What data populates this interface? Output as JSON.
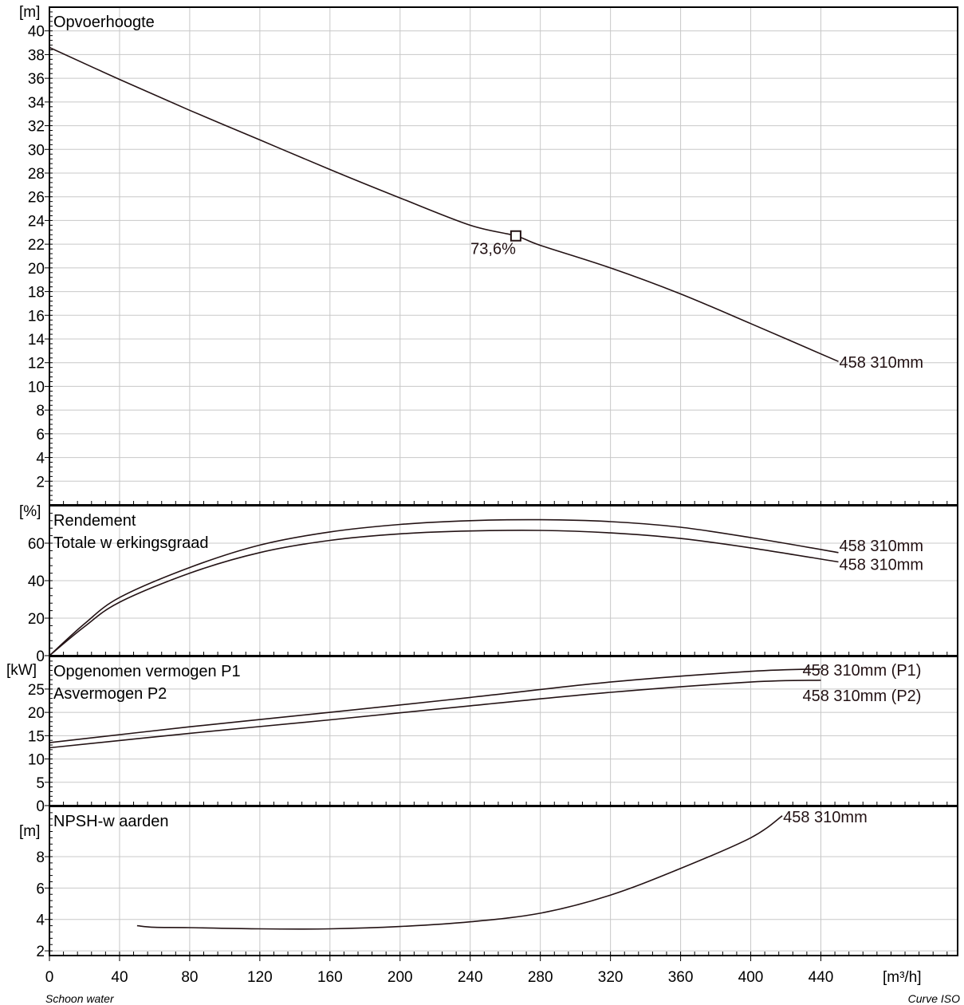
{
  "footer": {
    "left": "Schoon water",
    "right": "Curve ISO"
  },
  "x_axis": {
    "unit": "[m³/h]",
    "ticks": [
      0,
      40,
      80,
      120,
      160,
      200,
      240,
      280,
      320,
      360,
      400,
      440
    ],
    "range": [
      0,
      518
    ]
  },
  "colors": {
    "curve": "#231214",
    "grid": "#c8c8c8",
    "frame": "#000000"
  },
  "chart_data": [
    {
      "type": "line",
      "title": "Opvoerhoogte",
      "ylabel": "[m]",
      "ylim": [
        0,
        42
      ],
      "yticks": [
        2,
        4,
        6,
        8,
        10,
        12,
        14,
        16,
        18,
        20,
        22,
        24,
        26,
        28,
        30,
        32,
        34,
        36,
        38,
        40
      ],
      "series": [
        {
          "name": "458 310mm",
          "x": [
            0,
            40,
            80,
            120,
            160,
            200,
            240,
            266,
            280,
            320,
            360,
            400,
            450
          ],
          "y": [
            38.6,
            35.9,
            33.3,
            30.8,
            28.3,
            25.9,
            23.6,
            22.7,
            21.9,
            20.0,
            17.8,
            15.3,
            12.1
          ]
        }
      ],
      "annotations": [
        {
          "text": "73,6%",
          "x": 266,
          "y": 22.7
        }
      ]
    },
    {
      "type": "line",
      "title": "Rendement",
      "subtitle": "Totale w erkingsgraad",
      "ylabel": "[%]",
      "ylim": [
        0,
        80
      ],
      "yticks": [
        0,
        20,
        40,
        60
      ],
      "series": [
        {
          "name": "458 310mm",
          "x": [
            0,
            20,
            40,
            80,
            120,
            160,
            200,
            240,
            280,
            320,
            360,
            400,
            450
          ],
          "y": [
            0,
            17,
            31,
            47,
            59,
            66,
            70,
            72,
            72.5,
            71.5,
            68.5,
            63,
            55
          ]
        },
        {
          "name": "458 310mm",
          "x": [
            0,
            20,
            40,
            80,
            120,
            160,
            200,
            240,
            280,
            320,
            360,
            400,
            450
          ],
          "y": [
            0,
            15.5,
            28.5,
            44,
            55,
            61.5,
            65,
            66.5,
            66.8,
            65.5,
            62.5,
            57.5,
            50
          ]
        }
      ]
    },
    {
      "type": "line",
      "title": "Opgenomen vermogen P1",
      "subtitle": "Asvermogen P2",
      "ylabel": "[kW]",
      "ylim": [
        0,
        32
      ],
      "yticks": [
        0,
        5,
        10,
        15,
        20,
        25
      ],
      "series": [
        {
          "name": "458 310mm (P1)",
          "x": [
            0,
            80,
            160,
            240,
            320,
            400,
            440
          ],
          "y": [
            13.5,
            16.9,
            20.0,
            23.2,
            26.5,
            28.8,
            29.3
          ]
        },
        {
          "name": "458 310mm (P2)",
          "x": [
            0,
            80,
            160,
            240,
            320,
            400,
            440
          ],
          "y": [
            12.4,
            15.5,
            18.4,
            21.4,
            24.3,
            26.5,
            26.9
          ]
        }
      ]
    },
    {
      "type": "line",
      "title": "NPSH-w aarden",
      "ylabel": "[m]",
      "ylim": [
        1.7,
        11.2
      ],
      "yticks": [
        2,
        4,
        6,
        8
      ],
      "series": [
        {
          "name": "458 310mm",
          "x": [
            50,
            60,
            80,
            120,
            160,
            200,
            240,
            280,
            320,
            360,
            400,
            418
          ],
          "y": [
            3.6,
            3.5,
            3.48,
            3.4,
            3.4,
            3.55,
            3.85,
            4.4,
            5.55,
            7.25,
            9.2,
            10.6
          ]
        }
      ]
    }
  ]
}
